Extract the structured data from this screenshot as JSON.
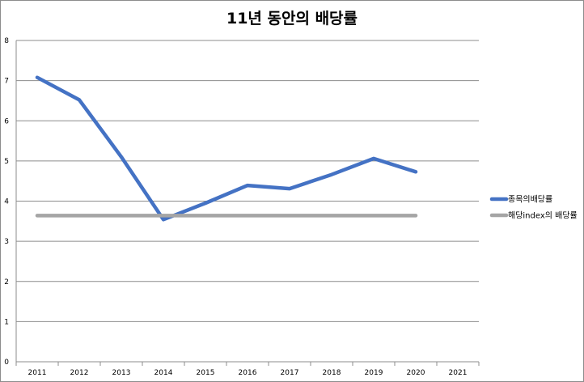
{
  "chart_data": {
    "type": "line",
    "title": "11년 동안의 배당률",
    "categories": [
      "2011",
      "2012",
      "2013",
      "2014",
      "2015",
      "2016",
      "2017",
      "2018",
      "2019",
      "2020",
      "2021"
    ],
    "ylim": [
      0,
      8
    ],
    "yticks": [
      "0",
      "1",
      "2",
      "3",
      "4",
      "5",
      "6",
      "7",
      "8"
    ],
    "grid": true,
    "legend_position": "right",
    "series": [
      {
        "name": "종목의배당률",
        "color": "#4472c4",
        "values": [
          7.08,
          6.52,
          5.1,
          3.54,
          3.95,
          4.39,
          4.31,
          4.66,
          5.06,
          4.73,
          null
        ]
      },
      {
        "name": "해당index의 배당률",
        "color": "#a5a5a5",
        "values": [
          3.64,
          3.64,
          3.64,
          3.64,
          3.64,
          3.64,
          3.64,
          3.64,
          3.64,
          3.64,
          null
        ]
      }
    ]
  }
}
